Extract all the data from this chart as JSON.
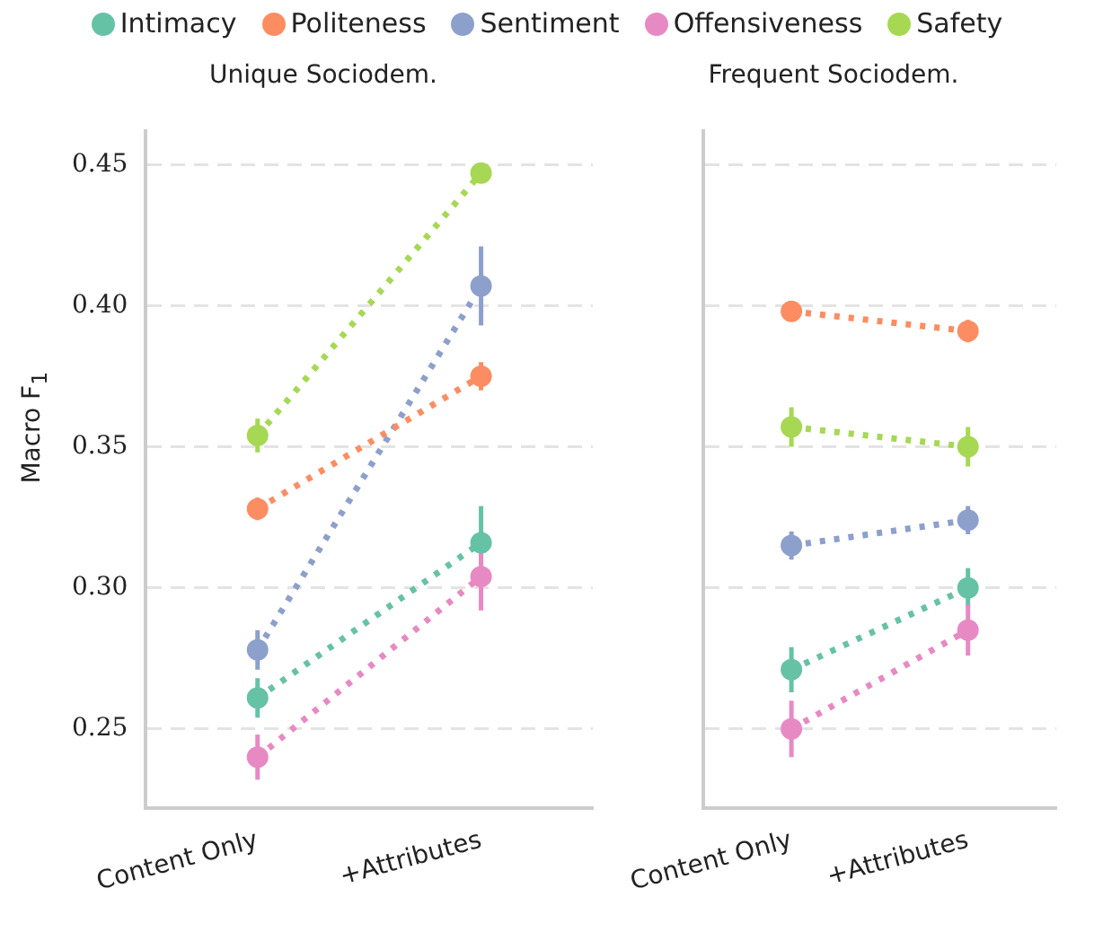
{
  "chart_data": [
    {
      "type": "line",
      "title": "Unique Sociodem.",
      "ylabel": "Macro F$_{1}$",
      "categories": [
        "Content Only",
        "+Attributes"
      ],
      "ylim": [
        0.222,
        0.462
      ],
      "yticks": [
        {
          "value": 0.25,
          "label": "0.25"
        },
        {
          "value": 0.3,
          "label": "0.30"
        },
        {
          "value": 0.35,
          "label": "0.35"
        },
        {
          "value": 0.4,
          "label": "0.40"
        },
        {
          "value": 0.45,
          "label": "0.45"
        }
      ],
      "grid": "y",
      "legend": "top",
      "marker": "circle",
      "line_style": "dotted",
      "series": [
        {
          "name": "Intimacy",
          "color": "#66c2a5",
          "values": [
            0.261,
            0.316
          ],
          "errors": [
            0.007,
            0.013
          ]
        },
        {
          "name": "Politeness",
          "color": "#fc8d62",
          "values": [
            0.328,
            0.375
          ],
          "errors": [
            0.004,
            0.005
          ]
        },
        {
          "name": "Sentiment",
          "color": "#8da0cb",
          "values": [
            0.278,
            0.407
          ],
          "errors": [
            0.007,
            0.014
          ]
        },
        {
          "name": "Offensiveness",
          "color": "#e78ac3",
          "values": [
            0.24,
            0.304
          ],
          "errors": [
            0.008,
            0.012
          ]
        },
        {
          "name": "Safety",
          "color": "#a6d854",
          "values": [
            0.354,
            0.447
          ],
          "errors": [
            0.006,
            0.002
          ]
        }
      ]
    },
    {
      "type": "line",
      "title": "Frequent Sociodem.",
      "categories": [
        "Content Only",
        "+Attributes"
      ],
      "ylim": [
        0.222,
        0.462
      ],
      "yticks": [
        0.25,
        0.3,
        0.35,
        0.4,
        0.45
      ],
      "grid": "y",
      "tick_labels": "x",
      "marker": "circle",
      "line_style": "dotted",
      "series": [
        {
          "color": "#66c2a5",
          "values": [
            0.271,
            0.3
          ],
          "errors": [
            0.008,
            0.007
          ]
        },
        {
          "color": "#fc8d62",
          "values": [
            0.398,
            0.391
          ],
          "errors": [
            0.003,
            0.004
          ]
        },
        {
          "color": "#8da0cb",
          "values": [
            0.315,
            0.324
          ],
          "errors": [
            0.005,
            0.005
          ]
        },
        {
          "color": "#e78ac3",
          "values": [
            0.25,
            0.285
          ],
          "errors": [
            0.01,
            0.009
          ]
        },
        {
          "color": "#a6d854",
          "values": [
            0.357,
            0.35
          ],
          "errors": [
            0.007,
            0.007
          ]
        }
      ]
    }
  ]
}
